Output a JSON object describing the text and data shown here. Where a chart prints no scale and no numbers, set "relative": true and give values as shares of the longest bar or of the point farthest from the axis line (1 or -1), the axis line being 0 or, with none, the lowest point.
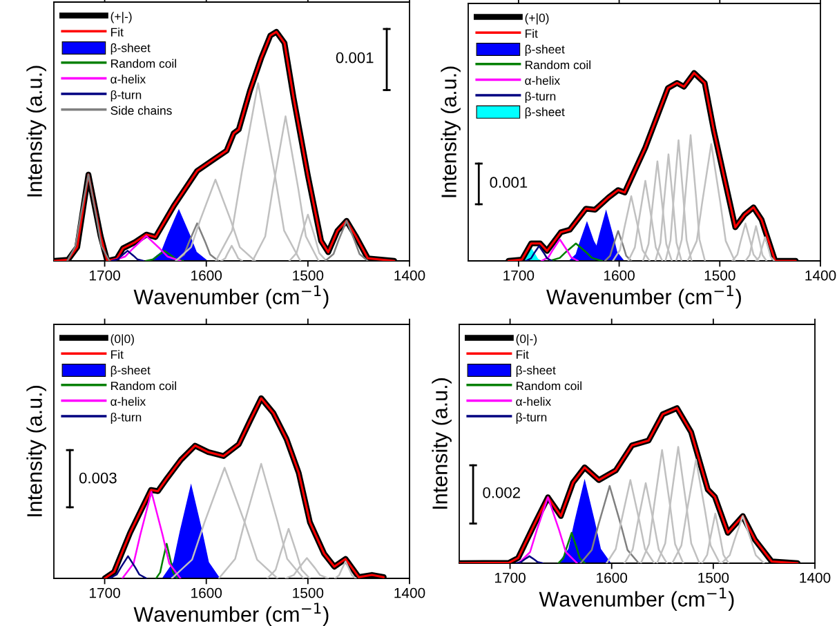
{
  "chart_data": [
    {
      "type": "line",
      "xlabel": "Wavenumber (cm$^{−1}$)",
      "ylabel": "Intensity (a.u.)",
      "relative": true,
      "xlim": [
        1750,
        1400
      ],
      "xticks": [
        1700,
        1600,
        1500,
        1400
      ],
      "grid": false,
      "legend": "top left",
      "annotations": [
        "0.001"
      ],
      "series": [
        {
          "name": "(+|-)",
          "color": "#000000",
          "x": [
            1749.7,
            1736,
            1727,
            1716,
            1704,
            1697.5,
            1688,
            1682,
            1670,
            1659,
            1650,
            1632,
            1609,
            1591,
            1580,
            1573,
            1568,
            1557,
            1546,
            1537,
            1531,
            1523,
            1514,
            1500,
            1487,
            1480,
            1471,
            1462,
            1453,
            1441,
            1415
          ],
          "values": [
            0,
            0.005,
            0.06,
            0.377,
            0.109,
            0,
            0.01,
            0.055,
            0.082,
            0.115,
            0.104,
            0.24,
            0.393,
            0.448,
            0.481,
            0.557,
            0.574,
            0.743,
            0.885,
            0.984,
            1.0,
            0.951,
            0.71,
            0.372,
            0.087,
            0.038,
            0.131,
            0.175,
            0.109,
            0.011,
            0
          ]
        },
        {
          "name": "Fit",
          "color": "#ff0000",
          "x": [
            1749.7,
            1736,
            1727,
            1716,
            1704,
            1697.5,
            1688,
            1682,
            1670,
            1659,
            1650,
            1632,
            1609,
            1591,
            1580,
            1573,
            1568,
            1557,
            1546,
            1537,
            1531,
            1523,
            1514,
            1500,
            1487,
            1480,
            1471,
            1462,
            1453,
            1441,
            1415
          ],
          "values": [
            0,
            0.005,
            0.06,
            0.377,
            0.109,
            0,
            0.01,
            0.055,
            0.082,
            0.115,
            0.104,
            0.24,
            0.393,
            0.448,
            0.481,
            0.557,
            0.574,
            0.743,
            0.885,
            0.984,
            1.0,
            0.951,
            0.71,
            0.372,
            0.087,
            0.038,
            0.131,
            0.175,
            0.109,
            0.011,
            0
          ]
        },
        {
          "name": "β-sheet",
          "type": "area",
          "color": "#0000ff",
          "x": [
            1655.6,
            1644.6,
            1638,
            1627,
            1616,
            1609.4,
            1598.4
          ],
          "values": [
            0,
            0.039,
            0.114,
            0.227,
            0.114,
            0.039,
            0
          ]
        },
        {
          "name": "Random coil",
          "color": "#008000",
          "x": [
            1659.2,
            1652.2,
            1648,
            1641,
            1634,
            1629.8,
            1622.8
          ],
          "values": [
            0,
            0.007,
            0.022,
            0.044,
            0.022,
            0.007,
            0
          ]
        },
        {
          "name": "α-helix",
          "color": "#ff00ff",
          "x": [
            1692.8,
            1679.8,
            1672,
            1659,
            1646,
            1638.2,
            1625.2
          ],
          "values": [
            0,
            0.019,
            0.055,
            0.109,
            0.055,
            0.019,
            0
          ]
        },
        {
          "name": "β-turn",
          "color": "#000080",
          "x": [
            1693.1,
            1687.1,
            1683.5,
            1677.5,
            1671.5,
            1667.9,
            1661.9
          ],
          "values": [
            0,
            0.007,
            0.022,
            0.044,
            0.022,
            0.007,
            0
          ]
        },
        {
          "name": "Side chains",
          "color": "#808080",
          "x": [
            1629.8,
            1621.8,
            1617,
            1609,
            1601,
            1596.2,
            1588.2
          ],
          "values": [
            0,
            0.028,
            0.082,
            0.164,
            0.082,
            0.028,
            0
          ]
        },
        {
          "color": "#808080",
          "x": [
            1736.8,
            1728.8,
            1724,
            1716,
            1708,
            1703.2,
            1695.2
          ],
          "values": [
            0,
            0.064,
            0.189,
            0.377,
            0.189,
            0.064,
            0
          ]
        },
        {
          "color": "#c0c0c0",
          "x": [
            1630,
            1615,
            1606,
            1591,
            1576,
            1567,
            1552
          ],
          "values": [
            0,
            0.06,
            0.178,
            0.355,
            0.178,
            0.06,
            0
          ]
        },
        {
          "color": "#c0c0c0",
          "x": [
            1585.4,
            1581.4,
            1579,
            1575,
            1571,
            1568.6,
            1564.6
          ],
          "values": [
            0,
            0.011,
            0.033,
            0.066,
            0.033,
            0.011,
            0
          ]
        },
        {
          "color": "#c0c0c0",
          "x": [
            1590.6,
            1574.6,
            1565,
            1549,
            1533,
            1523.4,
            1507.4
          ],
          "values": [
            0,
            0.132,
            0.388,
            0.776,
            0.388,
            0.132,
            0
          ]
        },
        {
          "color": "#c0c0c0",
          "x": [
            1554.5,
            1542,
            1534.5,
            1522,
            1509.5,
            1502,
            1489.5
          ],
          "values": [
            0,
            0.107,
            0.316,
            0.631,
            0.316,
            0.107,
            0
          ]
        },
        {
          "color": "#c0c0c0",
          "x": [
            1518.2,
            1511.2,
            1507,
            1500,
            1493,
            1488.8,
            1481.8
          ],
          "values": [
            0,
            0.034,
            0.101,
            0.202,
            0.101,
            0.034,
            0
          ]
        },
        {
          "color": "#808080",
          "x": [
            1482.8,
            1474.8,
            1470,
            1462,
            1454,
            1449.2,
            1441.2
          ],
          "values": [
            0,
            0.03,
            0.088,
            0.175,
            0.088,
            0.03,
            0
          ]
        }
      ]
    },
    {
      "type": "line",
      "xlabel": "Wavenumber (cm$^{−1}$)",
      "ylabel": "Intensity (a.u.)",
      "relative": true,
      "xlim": [
        1750,
        1400
      ],
      "xticks": [
        1700,
        1600,
        1500,
        1400
      ],
      "grid": false,
      "legend": "top left",
      "annotations": [
        "0.001"
      ],
      "series": [
        {
          "name": "(+|0)",
          "color": "#000000",
          "x": [
            1710,
            1696.6,
            1687.5,
            1678.5,
            1671.7,
            1658,
            1649,
            1633,
            1624,
            1610.5,
            1601,
            1594.5,
            1574,
            1551.5,
            1542.5,
            1535.6,
            1525.5,
            1515,
            1506,
            1484.6,
            1475.5,
            1466.5,
            1458.5,
            1445,
            1424.5
          ],
          "values": [
            0,
            0.007,
            0.093,
            0.093,
            0.053,
            0.152,
            0.166,
            0.278,
            0.272,
            0.338,
            0.377,
            0.364,
            0.603,
            0.92,
            0.947,
            0.927,
            1.0,
            0.947,
            0.695,
            0.179,
            0.245,
            0.285,
            0.219,
            0,
            0
          ]
        },
        {
          "name": "Fit",
          "color": "#ff0000",
          "x": [
            1710,
            1696.6,
            1687.5,
            1678.5,
            1671.7,
            1658,
            1649,
            1633,
            1624,
            1610.5,
            1601,
            1594.5,
            1574,
            1551.5,
            1542.5,
            1535.6,
            1525.5,
            1515,
            1506,
            1484.6,
            1475.5,
            1466.5,
            1458.5,
            1445,
            1424.5
          ],
          "values": [
            0,
            0.007,
            0.093,
            0.093,
            0.053,
            0.152,
            0.166,
            0.278,
            0.272,
            0.338,
            0.377,
            0.364,
            0.603,
            0.92,
            0.947,
            0.927,
            1.0,
            0.947,
            0.695,
            0.179,
            0.245,
            0.285,
            0.219,
            0,
            0
          ]
        },
        {
          "name": "β-sheet",
          "type": "area",
          "color": "#0000ff",
          "x": [
            1650.2,
            1643.2,
            1639,
            1632,
            1625,
            1620.8,
            1613.8
          ],
          "values": [
            0,
            0.036,
            0.106,
            0.212,
            0.106,
            null,
            0
          ]
        },
        {
          "name": "Random coil",
          "color": "#008000",
          "x": [
            1669,
            1659,
            1653,
            1643,
            1633,
            1627,
            1617
          ],
          "values": [
            0,
            0.016,
            0.047,
            0.093,
            0.047,
            0.016,
            0
          ]
        },
        {
          "name": "α-helix",
          "color": "#ff00ff",
          "x": [
            1677.2,
            1670.2,
            1666,
            1659,
            1652,
            1647.8,
            1640.8
          ],
          "values": [
            0,
            0.02,
            0.058,
            0.115,
            0.058,
            0.02,
            0
          ]
        },
        {
          "name": "β-turn",
          "color": "#000080",
          "x": [
            1692.6,
            1687.6,
            1684.6,
            1679.6,
            1674.6,
            1671.6,
            1666.6
          ],
          "values": [
            0,
            0.013,
            0.04,
            0.079,
            0.04,
            0.013,
            0
          ]
        },
        {
          "name": "β-sheet",
          "type": "area",
          "color": "#00ffff",
          "x": [
            1697.4,
            1693.4,
            1691,
            1687,
            1683,
            1680.6,
            1676.6
          ],
          "values": [
            0,
            0.011,
            0.033,
            0.066,
            0.033,
            0.011,
            0
          ]
        },
        {
          "type": "area",
          "color": "#0000ff",
          "x": [
            1631.2,
            1624.2,
            1620,
            1613,
            1606,
            1601.8,
            1594.8
          ],
          "values": [
            0,
            0.047,
            0.137,
            0.274,
            0.137,
            0.047,
            0
          ]
        },
        {
          "color": "#808080",
          "x": [
            1614,
            1609,
            1606,
            1601,
            1596,
            1593,
            1588
          ],
          "values": [
            0,
            0.027,
            0.08,
            0.159,
            0.08,
            0.027,
            0
          ]
        },
        {
          "color": "#c0c0c0",
          "x": [
            1606.2,
            1599.2,
            1595,
            1588,
            1581,
            1576.8,
            1569.8
          ],
          "values": [
            0,
            0.058,
            0.172,
            0.344,
            0.172,
            0.058,
            0
          ]
        },
        {
          "color": "#c0c0c0",
          "x": [
            1590.9,
            1584.4,
            1580.5,
            1574,
            1567.5,
            1563.6,
            1557.1
          ],
          "values": [
            0,
            0.072,
            0.213,
            0.426,
            0.213,
            0.072,
            0
          ]
        },
        {
          "color": "#c0c0c0",
          "x": [
            1576.3,
            1570.8,
            1567.5,
            1562,
            1556.5,
            1553.2,
            1547.7
          ],
          "values": [
            0,
            0.09,
            0.265,
            0.53,
            0.265,
            0.09,
            0
          ]
        },
        {
          "color": "#c0c0c0",
          "x": [
            1564,
            1559,
            1556,
            1551,
            1546,
            1543,
            1538
          ],
          "values": [
            0,
            0.096,
            0.284,
            0.567,
            0.284,
            0.096,
            0
          ]
        },
        {
          "color": "#c0c0c0",
          "x": [
            1554,
            1549,
            1546,
            1541,
            1536,
            1533,
            1528
          ],
          "values": [
            0,
            0.109,
            0.321,
            0.642,
            0.321,
            0.109,
            0
          ]
        },
        {
          "color": "#c0c0c0",
          "x": [
            1543.3,
            1537.8,
            1534.5,
            1529,
            1523.5,
            1520.2,
            1514.7
          ],
          "values": [
            0,
            0.114,
            0.335,
            0.669,
            0.335,
            0.114,
            0
          ]
        },
        {
          "color": "#c0c0c0",
          "x": [
            1531.9,
            1522.9,
            1517.5,
            1508.5,
            1499.5,
            1494.1,
            1485.1
          ],
          "values": [
            0,
            0.106,
            0.311,
            0.622,
            0.311,
            0.106,
            0
          ]
        },
        {
          "color": "#c0c0c0",
          "x": [
            1487.5,
            1482.5,
            1479.5,
            1474.5,
            1469.5,
            1466.5,
            1461.5
          ],
          "values": [
            0,
            0.034,
            0.1,
            0.199,
            0.1,
            0.034,
            0
          ]
        },
        {
          "color": "#c0c0c0",
          "x": [
            1474.4,
            1470.4,
            1468,
            1464,
            1460,
            1457.6,
            1453.6
          ],
          "values": [
            0,
            0.031,
            0.093,
            0.185,
            0.093,
            0.031,
            0
          ]
        },
        {
          "color": "#c0c0c0",
          "x": [
            1464.1,
            1460.6,
            1458.5,
            1455,
            1451.5,
            1449.4,
            1445.9
          ],
          "values": [
            0,
            0.021,
            0.063,
            0.126,
            0.063,
            0.021,
            0
          ]
        }
      ]
    },
    {
      "type": "line",
      "xlabel": "Wavenumber (cm$^{−1}$)",
      "ylabel": "Intensity (a.u.)",
      "relative": true,
      "xlim": [
        1750,
        1400
      ],
      "xticks": [
        1700,
        1600,
        1500,
        1400
      ],
      "grid": false,
      "legend": "top left",
      "annotations": [
        "0.003"
      ],
      "series": [
        {
          "name": "(0|0)",
          "color": "#000000",
          "x": [
            1700,
            1690.7,
            1675,
            1654.4,
            1647.6,
            1638.6,
            1625,
            1611,
            1598,
            1583,
            1568,
            1557,
            1546,
            1534,
            1521,
            1509,
            1498,
            1484,
            1474,
            1463,
            1450,
            1437,
            1425.4
          ],
          "values": [
            0,
            0.036,
            0.253,
            0.491,
            0.484,
            0.556,
            0.658,
            0.737,
            0.701,
            0.679,
            0.744,
            0.874,
            1.0,
            0.918,
            0.773,
            0.585,
            0.311,
            0.137,
            0.065,
            0.108,
            0.007,
            0.019,
            0.007
          ]
        },
        {
          "name": "Fit",
          "color": "#ff0000",
          "x": [
            1700,
            1690.7,
            1675,
            1654.4,
            1647.6,
            1638.6,
            1625,
            1611,
            1598,
            1583,
            1568,
            1557,
            1546,
            1534,
            1521,
            1509,
            1498,
            1484,
            1474,
            1463,
            1450,
            1437,
            1425.4
          ],
          "values": [
            0,
            0.036,
            0.253,
            0.491,
            0.484,
            0.556,
            0.658,
            0.737,
            0.701,
            0.679,
            0.744,
            0.874,
            1.0,
            0.918,
            0.773,
            0.585,
            0.311,
            0.137,
            0.065,
            0.108,
            0.007,
            0.019,
            0.007
          ]
        },
        {
          "name": "β-sheet",
          "type": "area",
          "color": "#0000ff",
          "x": [
            1643.6,
            1632.6,
            1626,
            1615,
            1604,
            1597.4,
            1586.4
          ],
          "values": [
            0,
            0.09,
            0.264,
            0.527,
            0.264,
            0.09,
            0
          ]
        },
        {
          "name": "Random coil",
          "color": "#008000",
          "x": [
            1649.4,
            1645.4,
            1643,
            1639,
            1635,
            1632.6,
            1628.6
          ],
          "values": [
            0,
            0.033,
            0.096,
            0.192,
            0.096,
            0.033,
            0
          ]
        },
        {
          "name": "α-helix",
          "color": "#ff00ff",
          "x": [
            1682.6,
            1671.6,
            1665,
            1654,
            1643,
            1636.4,
            1625.4
          ],
          "values": [
            0,
            0.082,
            0.241,
            0.481,
            0.241,
            0.082,
            0
          ]
        },
        {
          "name": "β-turn",
          "color": "#000080",
          "x": [
            1695.2,
            1688.2,
            1684,
            1677,
            1670,
            1665.8,
            1658.8
          ],
          "values": [
            0,
            0.021,
            0.062,
            0.123,
            0.062,
            0.021,
            0
          ]
        },
        {
          "color": "#c0c0c0",
          "x": [
            1634,
            1614,
            1602,
            1582,
            1562,
            1550,
            1530
          ],
          "values": [
            0,
            0.104,
            0.307,
            0.614,
            0.307,
            0.104,
            0
          ]
        },
        {
          "color": "#c0c0c0",
          "x": [
            1587.6,
            1571.6,
            1562,
            1546,
            1530,
            1520.4,
            1504.4
          ],
          "values": [
            0,
            0.108,
            0.318,
            0.636,
            0.318,
            0.108,
            0
          ]
        },
        {
          "color": "#c0c0c0",
          "x": [
            1539.8,
            1531.8,
            1527,
            1519,
            1511,
            1506.2,
            1498.2
          ],
          "values": [
            0,
            0.047,
            0.138,
            0.275,
            0.138,
            0.047,
            0
          ]
        },
        {
          "color": "#c0c0c0",
          "x": [
            1521.8,
            1513.8,
            1509,
            1501,
            1493,
            1488.2,
            1480.2
          ],
          "values": [
            0,
            0.019,
            0.057,
            0.113,
            0.057,
            0.019,
            0
          ]
        },
        {
          "color": "#c0c0c0",
          "x": [
            1473.4,
            1469.4,
            1467,
            1463,
            1459,
            1456.6,
            1452.6
          ],
          "values": [
            0,
            0.016,
            0.047,
            0.094,
            0.047,
            0.016,
            0
          ]
        }
      ]
    },
    {
      "type": "line",
      "xlabel": "Wavenumber (cm$^{−1}$)",
      "ylabel": "Intensity (a.u.)",
      "relative": true,
      "xlim": [
        1750,
        1400
      ],
      "xticks": [
        1700,
        1600,
        1500,
        1400
      ],
      "grid": false,
      "legend": "top left",
      "annotations": [
        "0.002"
      ],
      "series": [
        {
          "name": "(0|-)",
          "color": "#000000",
          "x": [
            1750,
            1701,
            1692,
            1675.5,
            1662.7,
            1650,
            1638,
            1626.6,
            1612.6,
            1596,
            1580,
            1563.7,
            1549.7,
            1535.7,
            1521.8,
            1505.4,
            1498.4,
            1485.7,
            1471,
            1458.9,
            1442.5,
            1417
          ],
          "values": [
            0,
            0.003,
            0.034,
            0.258,
            0.425,
            0.304,
            0.521,
            0.618,
            0.536,
            0.598,
            0.76,
            0.791,
            0.961,
            1.0,
            0.845,
            0.475,
            0.428,
            0.196,
            0.304,
            0.15,
            0.011,
            0
          ]
        },
        {
          "name": "Fit",
          "color": "#ff0000",
          "x": [
            1750,
            1701,
            1692,
            1675.5,
            1662.7,
            1650,
            1638,
            1626.6,
            1612.6,
            1596,
            1580,
            1563.7,
            1549.7,
            1535.7,
            1521.8,
            1505.4,
            1498.4,
            1485.7,
            1471,
            1458.9,
            1442.5,
            1417
          ],
          "values": [
            0,
            0.003,
            0.034,
            0.258,
            0.425,
            0.304,
            0.521,
            0.618,
            0.536,
            0.598,
            0.76,
            0.791,
            0.961,
            1.0,
            0.845,
            0.475,
            0.428,
            0.196,
            0.304,
            0.15,
            0.011,
            0
          ]
        },
        {
          "name": "β-sheet",
          "type": "area",
          "color": "#0000ff",
          "x": [
            1652.6,
            1642.6,
            1636.6,
            1626.6,
            1616.6,
            1610.6,
            1600.6
          ],
          "values": [
            0,
            0.092,
            0.272,
            0.544,
            0.272,
            0.092,
            0
          ]
        },
        {
          "name": "Random coil",
          "color": "#008000",
          "x": [
            1652.4,
            1647.4,
            1644.4,
            1639.4,
            1634.4,
            1631.4,
            1626.4
          ],
          "values": [
            0,
            0.033,
            0.098,
            0.196,
            0.098,
            0.033,
            0
          ]
        },
        {
          "name": "α-helix",
          "color": "#ff00ff",
          "x": [
            1691.3,
            1680.3,
            1673.7,
            1662.7,
            1651.7,
            1645.1,
            1634.1
          ],
          "values": [
            0,
            0.072,
            0.213,
            0.425,
            0.213,
            0.072,
            0
          ]
        },
        {
          "name": "β-turn",
          "color": "#000080",
          "x": [
            1694,
            1689,
            1686,
            1681,
            1676,
            1673,
            1668
          ],
          "values": [
            0,
            0.008,
            0.023,
            0.045,
            0.023,
            0.008,
            0
          ]
        },
        {
          "color": "#808080",
          "x": [
            1630.6,
            1619.6,
            1613,
            1602,
            1591,
            1584.4,
            1573.4
          ],
          "values": [
            0,
            0.085,
            0.249,
            0.498,
            0.249,
            0.085,
            0
          ]
        },
        {
          "color": "#c0c0c0",
          "x": [
            1605,
            1596,
            1590.6,
            1581.6,
            1572.6,
            1567.2,
            1558.2
          ],
          "values": [
            0,
            0.091,
            0.268,
            0.536,
            0.268,
            0.091,
            0
          ]
        },
        {
          "color": "#c0c0c0",
          "x": [
            1587.3,
            1579.3,
            1574.5,
            1566.5,
            1558.5,
            1553.7,
            1545.7
          ],
          "values": [
            0,
            0.088,
            0.258,
            0.516,
            0.258,
            0.088,
            0
          ]
        },
        {
          "color": "#c0c0c0",
          "x": [
            1571.2,
            1563.2,
            1558.4,
            1550.4,
            1542.4,
            1537.6,
            1529.6
          ],
          "values": [
            0,
            0.124,
            0.365,
            0.73,
            0.365,
            0.124,
            0
          ]
        },
        {
          "color": "#c0c0c0",
          "x": [
            1555.3,
            1547.3,
            1542.5,
            1534.5,
            1526.5,
            1521.7,
            1513.7
          ],
          "values": [
            0,
            0.128,
            0.375,
            0.75,
            0.375,
            0.128,
            0
          ]
        },
        {
          "color": "#c0c0c0",
          "x": [
            1540.4,
            1531.4,
            1526,
            1517,
            1508,
            1502.6,
            1493.6
          ],
          "values": [
            0,
            0.114,
            0.334,
            0.668,
            0.334,
            0.114,
            0
          ]
        },
        {
          "color": "#c0c0c0",
          "x": [
            1511,
            1506,
            1503,
            1498,
            1493,
            1490,
            1485
          ],
          "values": [
            0,
            0.054,
            0.16,
            0.32,
            0.16,
            0.054,
            0
          ]
        },
        {
          "color": "#c0c0c0",
          "x": [
            1491.8,
            1483.8,
            1479,
            1471,
            1463,
            1458.2,
            1450.2
          ],
          "values": [
            0,
            0.052,
            0.152,
            0.304,
            0.152,
            0.052,
            0
          ]
        }
      ]
    }
  ]
}
